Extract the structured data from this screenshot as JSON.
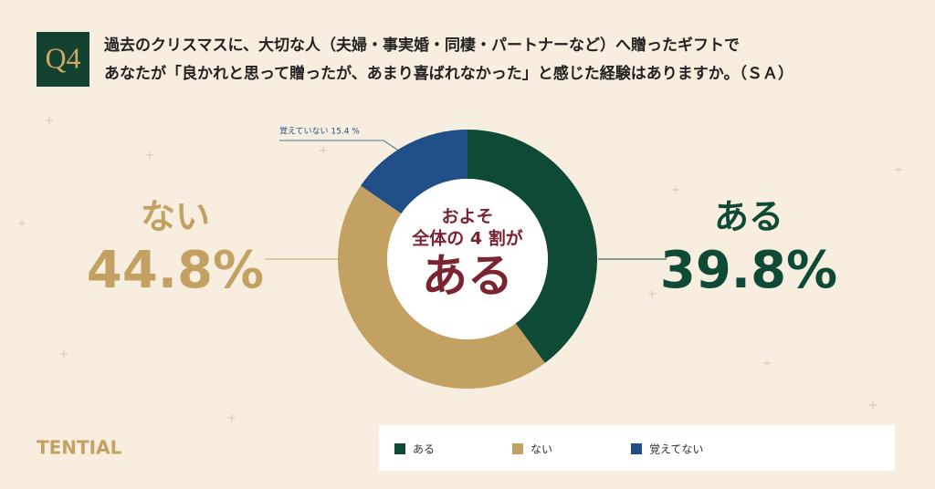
{
  "question": "Q4",
  "brand": "TENTIAL",
  "chart_data": {
    "type": "pie",
    "title": [
      "過去のクリスマスに、大切な人（夫婦・事実婚・同棲・パートナーなど）へ贈ったギフトで",
      "あなたが「良かれと思って贈ったが、あまり喜ばれなかった」と感じた経験はありますか。（ＳＡ）"
    ],
    "categories": [
      "ある",
      "ない",
      "覚えてない"
    ],
    "values": [
      39.8,
      44.8,
      15.4
    ],
    "value_labels": [
      "39.8%",
      "44.8%",
      "覚えていない 15.4 %"
    ],
    "colors": [
      "#0f4a37",
      "#c3a162",
      "#1f4f86"
    ],
    "center_text": [
      "およそ",
      "全体の 4 割が",
      "ある"
    ]
  }
}
